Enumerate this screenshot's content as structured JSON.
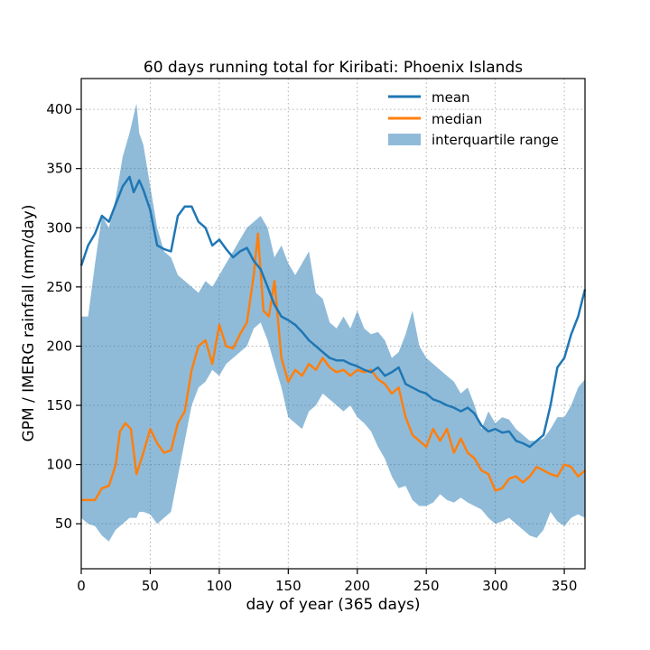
{
  "chart_data": {
    "type": "line",
    "title": "60 days running total for Kiribati: Phoenix Islands",
    "xlabel": "day of year (365 days)",
    "ylabel": "GPM / IMERG rainfall (mm/day)",
    "xlim": [
      0,
      365
    ],
    "ylim": [
      12,
      426
    ],
    "xticks": [
      0,
      50,
      100,
      150,
      200,
      250,
      300,
      350
    ],
    "yticks": [
      50,
      100,
      150,
      200,
      250,
      300,
      350,
      400
    ],
    "grid": true,
    "legend_position": "top-right",
    "colors": {
      "mean": "#1f77b4",
      "median": "#ff7f0e",
      "iqr": "#1f77b4"
    },
    "series": [
      {
        "name": "mean",
        "x": [
          0,
          5,
          10,
          15,
          20,
          25,
          30,
          35,
          38,
          42,
          45,
          50,
          55,
          60,
          65,
          70,
          75,
          80,
          85,
          90,
          95,
          100,
          105,
          110,
          115,
          120,
          125,
          130,
          135,
          140,
          145,
          150,
          155,
          160,
          165,
          170,
          175,
          180,
          185,
          190,
          195,
          200,
          205,
          210,
          215,
          220,
          225,
          230,
          235,
          240,
          245,
          250,
          255,
          260,
          265,
          270,
          275,
          280,
          285,
          290,
          295,
          300,
          305,
          310,
          315,
          320,
          325,
          330,
          335,
          340,
          345,
          350,
          355,
          360,
          365
        ],
        "values": [
          268,
          285,
          295,
          310,
          305,
          320,
          335,
          343,
          330,
          340,
          332,
          315,
          285,
          282,
          280,
          310,
          318,
          318,
          305,
          300,
          285,
          290,
          282,
          275,
          280,
          283,
          272,
          265,
          250,
          235,
          225,
          222,
          218,
          212,
          205,
          200,
          195,
          190,
          188,
          188,
          185,
          183,
          180,
          178,
          182,
          175,
          178,
          182,
          168,
          165,
          162,
          160,
          155,
          153,
          150,
          148,
          145,
          148,
          143,
          133,
          128,
          130,
          127,
          128,
          120,
          118,
          115,
          120,
          125,
          150,
          182,
          190,
          210,
          225,
          248
        ]
      },
      {
        "name": "median",
        "x": [
          0,
          5,
          10,
          15,
          20,
          25,
          28,
          32,
          36,
          40,
          45,
          50,
          55,
          60,
          65,
          70,
          75,
          80,
          85,
          90,
          95,
          100,
          105,
          110,
          115,
          120,
          125,
          128,
          132,
          136,
          140,
          145,
          150,
          155,
          160,
          165,
          170,
          175,
          180,
          185,
          190,
          195,
          200,
          205,
          210,
          215,
          220,
          225,
          230,
          235,
          240,
          245,
          250,
          255,
          260,
          265,
          270,
          275,
          280,
          285,
          290,
          295,
          300,
          305,
          310,
          315,
          320,
          325,
          330,
          335,
          340,
          345,
          350,
          355,
          360,
          365
        ],
        "values": [
          70,
          70,
          70,
          80,
          82,
          100,
          128,
          135,
          130,
          92,
          110,
          130,
          118,
          110,
          112,
          135,
          145,
          180,
          200,
          205,
          185,
          218,
          200,
          198,
          210,
          220,
          260,
          295,
          230,
          225,
          255,
          190,
          170,
          180,
          175,
          185,
          180,
          190,
          182,
          178,
          180,
          175,
          180,
          178,
          180,
          172,
          168,
          160,
          165,
          140,
          125,
          120,
          115,
          130,
          120,
          130,
          110,
          122,
          110,
          105,
          95,
          92,
          78,
          80,
          88,
          90,
          85,
          90,
          98,
          95,
          92,
          90,
          100,
          98,
          90,
          95
        ]
      }
    ],
    "band": {
      "name": "interquartile range",
      "x": [
        0,
        5,
        10,
        15,
        20,
        25,
        30,
        35,
        40,
        42,
        45,
        50,
        55,
        60,
        65,
        70,
        75,
        80,
        85,
        90,
        95,
        100,
        105,
        110,
        115,
        120,
        125,
        130,
        135,
        140,
        145,
        150,
        155,
        160,
        165,
        170,
        175,
        180,
        185,
        190,
        195,
        200,
        205,
        210,
        215,
        220,
        225,
        230,
        235,
        240,
        245,
        250,
        255,
        260,
        265,
        270,
        275,
        280,
        285,
        290,
        295,
        300,
        305,
        310,
        315,
        320,
        325,
        330,
        335,
        340,
        345,
        350,
        355,
        360,
        365
      ],
      "upper": [
        225,
        225,
        270,
        310,
        300,
        325,
        360,
        380,
        405,
        380,
        370,
        335,
        300,
        280,
        275,
        260,
        255,
        250,
        245,
        255,
        250,
        260,
        270,
        280,
        290,
        300,
        305,
        310,
        300,
        275,
        285,
        270,
        260,
        270,
        280,
        245,
        240,
        220,
        215,
        225,
        215,
        230,
        215,
        210,
        212,
        205,
        190,
        195,
        210,
        230,
        200,
        190,
        185,
        180,
        175,
        170,
        160,
        165,
        150,
        130,
        145,
        135,
        140,
        138,
        130,
        125,
        120,
        120,
        122,
        130,
        140,
        140,
        150,
        165,
        172
      ],
      "lower": [
        55,
        50,
        48,
        40,
        35,
        45,
        50,
        55,
        55,
        60,
        60,
        58,
        50,
        55,
        60,
        90,
        120,
        150,
        165,
        170,
        180,
        175,
        185,
        190,
        195,
        200,
        215,
        220,
        205,
        185,
        165,
        140,
        135,
        130,
        145,
        150,
        160,
        155,
        150,
        145,
        150,
        140,
        135,
        128,
        115,
        105,
        90,
        80,
        82,
        70,
        65,
        65,
        68,
        75,
        70,
        68,
        72,
        68,
        65,
        62,
        55,
        50,
        52,
        55,
        50,
        45,
        40,
        38,
        45,
        60,
        52,
        48,
        55,
        58,
        55
      ]
    }
  }
}
